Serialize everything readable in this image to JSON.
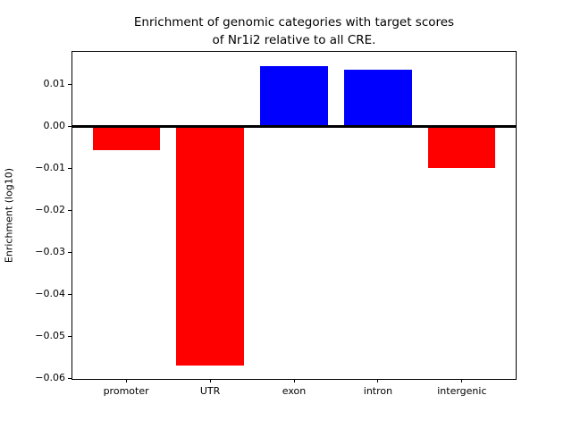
{
  "chart_data": {
    "type": "bar",
    "title": "Enrichment of genomic categories with target scores\nof Nr1i2 relative to all CRE.",
    "xlabel": "",
    "ylabel": "Enrichment (log10)",
    "categories": [
      "promoter",
      "UTR",
      "exon",
      "intron",
      "intergenic"
    ],
    "values": [
      -0.0057,
      -0.057,
      0.0143,
      0.0134,
      -0.01
    ],
    "bar_colors": [
      "#ff0000",
      "#ff0000",
      "#0000ff",
      "#0000ff",
      "#ff0000"
    ],
    "positive_color": "#0000ff",
    "negative_color": "#ff0000",
    "yticks": [
      0.01,
      0,
      -0.01,
      -0.02,
      -0.03,
      -0.04,
      -0.05,
      -0.06
    ],
    "ytick_labels": [
      "0.01",
      "0.00",
      "−0.01",
      "−0.02",
      "−0.03",
      "−0.04",
      "−0.05",
      "−0.06"
    ],
    "ylim": [
      -0.0602,
      0.0177
    ],
    "xlim": [
      -0.64,
      4.64
    ],
    "bar_width": 0.8,
    "zero_line_color": "#000000",
    "axis_color": "#000000",
    "background_color": "#ffffff",
    "grid": false,
    "legend": false
  }
}
